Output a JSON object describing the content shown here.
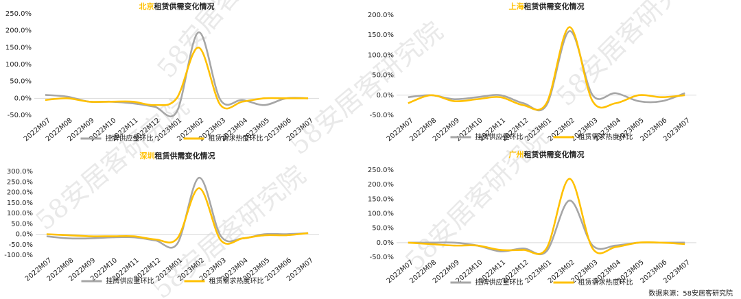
{
  "chart_data": [
    {
      "type": "line",
      "city": "北京",
      "title": "租赁供需变化情况",
      "categories": [
        "2022M07",
        "2022M08",
        "2022M09",
        "2022M10",
        "2022M11",
        "2022M12",
        "2023M01",
        "2023M02",
        "2023M03",
        "2023M04",
        "2023M05",
        "2023M06",
        "2023M07"
      ],
      "series": [
        {
          "name": "挂牌供应量环比",
          "color": "#a6a6a6",
          "values": [
            10,
            5,
            -10,
            -10,
            -15,
            -25,
            -40,
            195,
            -5,
            -5,
            -20,
            0,
            0
          ]
        },
        {
          "name": "租赁需求热度环比",
          "color": "#ffc000",
          "values": [
            -5,
            0,
            -10,
            -10,
            -10,
            -20,
            0,
            150,
            -20,
            -10,
            0,
            0,
            0
          ]
        }
      ],
      "ylim": [
        -50,
        250
      ],
      "yticks": [
        {
          "value": -50,
          "label": "-50.0%"
        },
        {
          "value": 0,
          "label": "0.0%"
        },
        {
          "value": 50,
          "label": "50.0%"
        },
        {
          "value": 100,
          "label": "100.0%"
        },
        {
          "value": 150,
          "label": "150.0%"
        },
        {
          "value": 200,
          "label": "200.0%"
        },
        {
          "value": 250,
          "label": "250.0%"
        }
      ],
      "grid": false
    },
    {
      "type": "line",
      "city": "上海",
      "title": "租赁供需变化情况",
      "categories": [
        "2022M07",
        "2022M08",
        "2022M09",
        "2022M10",
        "2022M11",
        "2022M12",
        "2023M01",
        "2023M02",
        "2023M03",
        "2023M04",
        "2023M05",
        "2023M06",
        "2023M07"
      ],
      "series": [
        {
          "name": "挂牌供应量环比",
          "color": "#a6a6a6",
          "values": [
            -5,
            0,
            -10,
            -5,
            0,
            -20,
            -25,
            160,
            0,
            5,
            -15,
            -15,
            5
          ]
        },
        {
          "name": "租赁需求热度环比",
          "color": "#ffc000",
          "values": [
            -20,
            0,
            -15,
            -10,
            -5,
            -25,
            -20,
            170,
            -15,
            -20,
            0,
            -5,
            0
          ]
        }
      ],
      "ylim": [
        -50,
        200
      ],
      "yticks": [
        {
          "value": -50,
          "label": "-50.0%"
        },
        {
          "value": 0,
          "label": "0.0%"
        },
        {
          "value": 50,
          "label": "50.0%"
        },
        {
          "value": 100,
          "label": "100.0%"
        },
        {
          "value": 150,
          "label": "150.0%"
        },
        {
          "value": 200,
          "label": "200.0%"
        }
      ],
      "grid": false
    },
    {
      "type": "line",
      "city": "深圳",
      "title": "租赁供需变化情况",
      "categories": [
        "2022M07",
        "2022M08",
        "2022M09",
        "2022M10",
        "2022M11",
        "2022M12",
        "2023M01",
        "2023M02",
        "2023M03",
        "2023M04",
        "2023M05",
        "2023M06",
        "2023M07"
      ],
      "series": [
        {
          "name": "挂牌供应量环比",
          "color": "#a6a6a6",
          "values": [
            -10,
            -20,
            -20,
            -15,
            -15,
            -30,
            -45,
            270,
            -10,
            -20,
            0,
            0,
            5
          ]
        },
        {
          "name": "租赁需求热度环比",
          "color": "#ffc000",
          "values": [
            0,
            -5,
            -10,
            -10,
            -10,
            -25,
            -20,
            220,
            -30,
            -20,
            -5,
            -5,
            5
          ]
        }
      ],
      "ylim": [
        -100,
        300
      ],
      "yticks": [
        {
          "value": -100,
          "label": "-100.0%"
        },
        {
          "value": -50,
          "label": "-50.0%"
        },
        {
          "value": 0,
          "label": "0.0%"
        },
        {
          "value": 50,
          "label": "50.0%"
        },
        {
          "value": 100,
          "label": "100.0%"
        },
        {
          "value": 150,
          "label": "150.0%"
        },
        {
          "value": 200,
          "label": "200.0%"
        },
        {
          "value": 250,
          "label": "250.0%"
        },
        {
          "value": 300,
          "label": "300.0%"
        }
      ],
      "grid": false
    },
    {
      "type": "line",
      "city": "广州",
      "title": "租赁供需变化情况",
      "categories": [
        "2022M07",
        "2022M08",
        "2022M09",
        "2022M10",
        "2022M11",
        "2022M12",
        "2023M01",
        "2023M02",
        "2023M03",
        "2023M04",
        "2023M05",
        "2023M06",
        "2023M07"
      ],
      "series": [
        {
          "name": "挂牌供应量环比",
          "color": "#a6a6a6",
          "values": [
            0,
            0,
            0,
            -10,
            -30,
            -20,
            -30,
            145,
            -10,
            -10,
            0,
            0,
            0
          ]
        },
        {
          "name": "租赁需求热度环比",
          "color": "#ffc000",
          "values": [
            0,
            -5,
            -10,
            -10,
            -25,
            -25,
            -20,
            220,
            -20,
            -15,
            0,
            0,
            -5
          ]
        }
      ],
      "ylim": [
        -50,
        250
      ],
      "yticks": [
        {
          "value": -50,
          "label": "-50.0%"
        },
        {
          "value": 0,
          "label": "0.0%"
        },
        {
          "value": 50,
          "label": "50.0%"
        },
        {
          "value": 100,
          "label": "100.0%"
        },
        {
          "value": 150,
          "label": "150.0%"
        },
        {
          "value": 200,
          "label": "200.0%"
        },
        {
          "value": 250,
          "label": "250.0%"
        }
      ],
      "grid": false
    }
  ],
  "source": "数据来源：58安居客研究院",
  "watermark": "58安居客研究院"
}
